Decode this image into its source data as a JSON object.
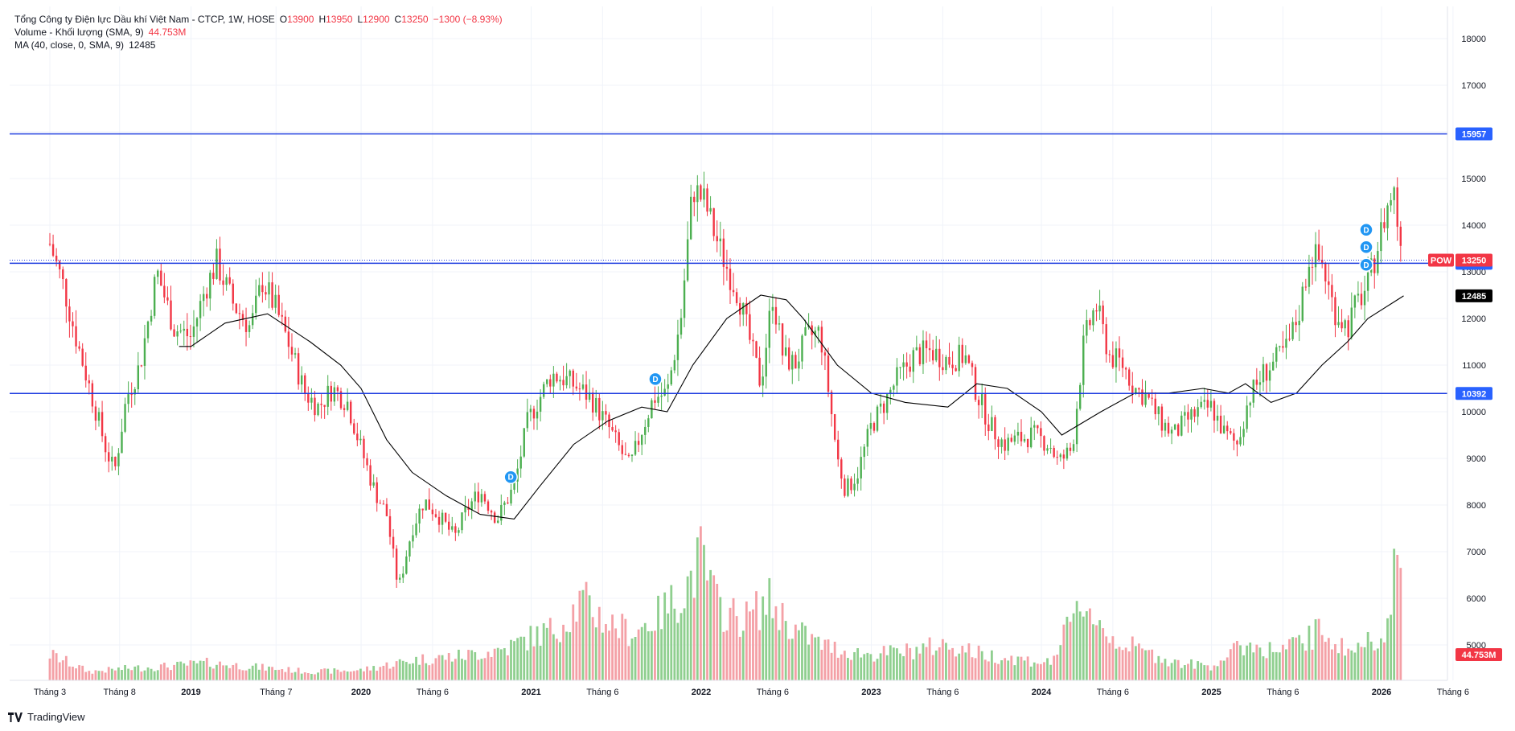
{
  "legend": {
    "title": "Tổng Công ty Điện lực Dầu khí Việt Nam - CTCP, 1W, HOSE",
    "o_label": "O",
    "o": "13900",
    "h_label": "H",
    "h": "13950",
    "l_label": "L",
    "l": "12900",
    "c_label": "C",
    "c": "13250",
    "change": "−1300 (−8.93%)",
    "volume_label": "Volume - Khối lượng (SMA, 9)",
    "volume_value": "44.753M",
    "ma_label": "MA (40, close, 0, SMA, 9)",
    "ma_value": "12485"
  },
  "footer": {
    "brand": "TradingView"
  },
  "colors": {
    "up": "#4caf50",
    "down": "#f23645",
    "up_vol": "#8fcf8f",
    "down_vol": "#f4a0a6",
    "line": "#1e3ce0",
    "ma": "#000000"
  },
  "chart_data": {
    "type": "candlestick",
    "symbol": "POW",
    "interval": "1W",
    "ylim": [
      4300,
      18400
    ],
    "yticks": [
      5000,
      6000,
      7000,
      8000,
      9000,
      10000,
      11000,
      12000,
      13000,
      14000,
      15000,
      16000,
      17000,
      18000
    ],
    "x_labels": [
      {
        "label": "Tháng 3",
        "t": 2018.17,
        "year": false
      },
      {
        "label": "Tháng 8",
        "t": 2018.58,
        "year": false
      },
      {
        "label": "2019",
        "t": 2019.0,
        "year": true
      },
      {
        "label": "Tháng 7",
        "t": 2019.5,
        "year": false
      },
      {
        "label": "2020",
        "t": 2020.0,
        "year": true
      },
      {
        "label": "Tháng 6",
        "t": 2020.42,
        "year": false
      },
      {
        "label": "2021",
        "t": 2021.0,
        "year": true
      },
      {
        "label": "Tháng 6",
        "t": 2021.42,
        "year": false
      },
      {
        "label": "2022",
        "t": 2022.0,
        "year": true
      },
      {
        "label": "Tháng 6",
        "t": 2022.42,
        "year": false
      },
      {
        "label": "2023",
        "t": 2023.0,
        "year": true
      },
      {
        "label": "Tháng 6",
        "t": 2023.42,
        "year": false
      },
      {
        "label": "2024",
        "t": 2024.0,
        "year": true
      },
      {
        "label": "Tháng 6",
        "t": 2024.42,
        "year": false
      },
      {
        "label": "2025",
        "t": 2025.0,
        "year": true
      },
      {
        "label": "Tháng 6",
        "t": 2025.42,
        "year": false
      },
      {
        "label": "2026",
        "t": 2026.0,
        "year": true
      },
      {
        "label": "Tháng 6",
        "t": 2026.42,
        "year": false
      }
    ],
    "horizontal_lines": [
      {
        "price": 15957,
        "label": "15957"
      },
      {
        "price": 13184,
        "label": "13184"
      },
      {
        "price": 10392,
        "label": "10392"
      }
    ],
    "price_tags": [
      {
        "name": "POW",
        "price": 13250,
        "label": "13250",
        "kind": "last"
      },
      {
        "name": "",
        "price": 12485,
        "label": "12485",
        "kind": "ma"
      }
    ],
    "volume_tag": "44.753M",
    "dividend_markers": [
      {
        "t": 2020.88,
        "price": 8600
      },
      {
        "t": 2021.73,
        "price": 10700
      },
      {
        "t": 2025.91,
        "price": 13150
      },
      {
        "t": 2025.91,
        "price": 13530
      },
      {
        "t": 2025.91,
        "price": 13900
      }
    ],
    "marker_label": "D",
    "t_start": 2018.17,
    "t_end": 2026.13,
    "close_keypoints": [
      [
        2018.17,
        13600
      ],
      [
        2018.25,
        12700
      ],
      [
        2018.33,
        11500
      ],
      [
        2018.42,
        10300
      ],
      [
        2018.5,
        9200
      ],
      [
        2018.55,
        8700
      ],
      [
        2018.62,
        10300
      ],
      [
        2018.7,
        11000
      ],
      [
        2018.8,
        13000
      ],
      [
        2018.9,
        11800
      ],
      [
        2019.0,
        11600
      ],
      [
        2019.08,
        12600
      ],
      [
        2019.15,
        13200
      ],
      [
        2019.25,
        12300
      ],
      [
        2019.35,
        11800
      ],
      [
        2019.42,
        12800
      ],
      [
        2019.5,
        12200
      ],
      [
        2019.58,
        11400
      ],
      [
        2019.67,
        10400
      ],
      [
        2019.75,
        10100
      ],
      [
        2019.83,
        10500
      ],
      [
        2019.92,
        10200
      ],
      [
        2020.0,
        9200
      ],
      [
        2020.08,
        8300
      ],
      [
        2020.15,
        7800
      ],
      [
        2020.22,
        6200
      ],
      [
        2020.3,
        7500
      ],
      [
        2020.37,
        8100
      ],
      [
        2020.45,
        7800
      ],
      [
        2020.55,
        7300
      ],
      [
        2020.62,
        7900
      ],
      [
        2020.7,
        8300
      ],
      [
        2020.8,
        7700
      ],
      [
        2020.9,
        8400
      ],
      [
        2020.98,
        9800
      ],
      [
        2021.05,
        10300
      ],
      [
        2021.12,
        10800
      ],
      [
        2021.2,
        10700
      ],
      [
        2021.28,
        10500
      ],
      [
        2021.35,
        10300
      ],
      [
        2021.45,
        9700
      ],
      [
        2021.52,
        9200
      ],
      [
        2021.58,
        8800
      ],
      [
        2021.65,
        9600
      ],
      [
        2021.72,
        10300
      ],
      [
        2021.8,
        10400
      ],
      [
        2021.88,
        12000
      ],
      [
        2021.95,
        14800
      ],
      [
        2022.02,
        14500
      ],
      [
        2022.08,
        13800
      ],
      [
        2022.15,
        13100
      ],
      [
        2022.22,
        12500
      ],
      [
        2022.3,
        11300
      ],
      [
        2022.35,
        10600
      ],
      [
        2022.42,
        12500
      ],
      [
        2022.48,
        11200
      ],
      [
        2022.55,
        11000
      ],
      [
        2022.62,
        11600
      ],
      [
        2022.7,
        11700
      ],
      [
        2022.75,
        10400
      ],
      [
        2022.8,
        9000
      ],
      [
        2022.85,
        8300
      ],
      [
        2022.92,
        8700
      ],
      [
        2023.0,
        9700
      ],
      [
        2023.08,
        10200
      ],
      [
        2023.15,
        10700
      ],
      [
        2023.25,
        11200
      ],
      [
        2023.35,
        11300
      ],
      [
        2023.45,
        11100
      ],
      [
        2023.55,
        11200
      ],
      [
        2023.62,
        10400
      ],
      [
        2023.7,
        9700
      ],
      [
        2023.78,
        9300
      ],
      [
        2023.85,
        9400
      ],
      [
        2023.95,
        9500
      ],
      [
        2024.05,
        9300
      ],
      [
        2024.1,
        8900
      ],
      [
        2024.18,
        9200
      ],
      [
        2024.25,
        11500
      ],
      [
        2024.32,
        12300
      ],
      [
        2024.4,
        11200
      ],
      [
        2024.48,
        11000
      ],
      [
        2024.55,
        10500
      ],
      [
        2024.62,
        10300
      ],
      [
        2024.7,
        9800
      ],
      [
        2024.78,
        9500
      ],
      [
        2024.85,
        9800
      ],
      [
        2024.92,
        10000
      ],
      [
        2025.0,
        10100
      ],
      [
        2025.08,
        9500
      ],
      [
        2025.15,
        9300
      ],
      [
        2025.22,
        10300
      ],
      [
        2025.3,
        10800
      ],
      [
        2025.38,
        11100
      ],
      [
        2025.45,
        11400
      ],
      [
        2025.52,
        12200
      ],
      [
        2025.58,
        13400
      ],
      [
        2025.65,
        13200
      ],
      [
        2025.72,
        12200
      ],
      [
        2025.8,
        11800
      ],
      [
        2025.85,
        12300
      ],
      [
        2025.92,
        12700
      ],
      [
        2025.98,
        13600
      ],
      [
        2026.02,
        14200
      ],
      [
        2026.07,
        14800
      ],
      [
        2026.1,
        13900
      ],
      [
        2026.13,
        13250
      ]
    ],
    "ma_keypoints": [
      [
        2018.93,
        11400
      ],
      [
        2019.0,
        11400
      ],
      [
        2019.2,
        11900
      ],
      [
        2019.45,
        12100
      ],
      [
        2019.7,
        11500
      ],
      [
        2019.88,
        11000
      ],
      [
        2020.0,
        10500
      ],
      [
        2020.15,
        9400
      ],
      [
        2020.3,
        8700
      ],
      [
        2020.5,
        8200
      ],
      [
        2020.7,
        7800
      ],
      [
        2020.9,
        7700
      ],
      [
        2021.05,
        8400
      ],
      [
        2021.25,
        9300
      ],
      [
        2021.45,
        9800
      ],
      [
        2021.65,
        10100
      ],
      [
        2021.8,
        10000
      ],
      [
        2021.95,
        11000
      ],
      [
        2022.15,
        12000
      ],
      [
        2022.35,
        12500
      ],
      [
        2022.5,
        12400
      ],
      [
        2022.6,
        12000
      ],
      [
        2022.8,
        11000
      ],
      [
        2023.0,
        10400
      ],
      [
        2023.2,
        10200
      ],
      [
        2023.45,
        10100
      ],
      [
        2023.62,
        10600
      ],
      [
        2023.8,
        10500
      ],
      [
        2024.0,
        10000
      ],
      [
        2024.12,
        9500
      ],
      [
        2024.35,
        10000
      ],
      [
        2024.55,
        10400
      ],
      [
        2024.75,
        10400
      ],
      [
        2024.95,
        10500
      ],
      [
        2025.1,
        10400
      ],
      [
        2025.2,
        10600
      ],
      [
        2025.35,
        10200
      ],
      [
        2025.5,
        10400
      ],
      [
        2025.65,
        11000
      ],
      [
        2025.8,
        11500
      ],
      [
        2025.92,
        12000
      ],
      [
        2026.05,
        12300
      ],
      [
        2026.13,
        12485
      ]
    ],
    "volume_keypoints": [
      [
        2018.17,
        0.18
      ],
      [
        2018.4,
        0.06
      ],
      [
        2018.6,
        0.08
      ],
      [
        2018.9,
        0.1
      ],
      [
        2019.1,
        0.12
      ],
      [
        2019.4,
        0.09
      ],
      [
        2019.7,
        0.06
      ],
      [
        2020.0,
        0.07
      ],
      [
        2020.3,
        0.14
      ],
      [
        2020.6,
        0.17
      ],
      [
        2020.85,
        0.22
      ],
      [
        2021.0,
        0.3
      ],
      [
        2021.15,
        0.36
      ],
      [
        2021.3,
        0.55
      ],
      [
        2021.45,
        0.4
      ],
      [
        2021.6,
        0.33
      ],
      [
        2021.75,
        0.45
      ],
      [
        2021.9,
        0.62
      ],
      [
        2022.0,
        0.85
      ],
      [
        2022.1,
        0.5
      ],
      [
        2022.25,
        0.42
      ],
      [
        2022.4,
        0.55
      ],
      [
        2022.55,
        0.35
      ],
      [
        2022.7,
        0.25
      ],
      [
        2022.85,
        0.2
      ],
      [
        2023.0,
        0.18
      ],
      [
        2023.2,
        0.2
      ],
      [
        2023.45,
        0.25
      ],
      [
        2023.65,
        0.18
      ],
      [
        2023.85,
        0.15
      ],
      [
        2024.05,
        0.12
      ],
      [
        2024.25,
        0.55
      ],
      [
        2024.4,
        0.3
      ],
      [
        2024.6,
        0.2
      ],
      [
        2024.8,
        0.12
      ],
      [
        2025.0,
        0.1
      ],
      [
        2025.2,
        0.25
      ],
      [
        2025.4,
        0.2
      ],
      [
        2025.55,
        0.28
      ],
      [
        2025.65,
        0.35
      ],
      [
        2025.8,
        0.2
      ],
      [
        2025.95,
        0.28
      ],
      [
        2026.05,
        0.42
      ],
      [
        2026.1,
        1.0
      ],
      [
        2026.13,
        0.25
      ]
    ]
  }
}
